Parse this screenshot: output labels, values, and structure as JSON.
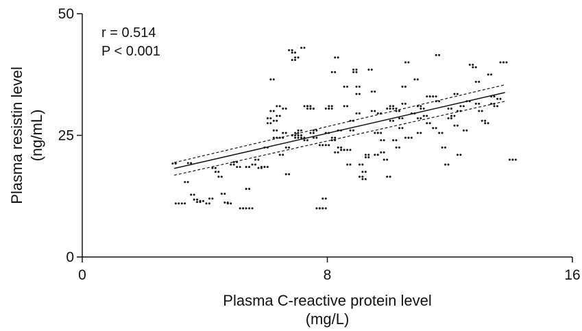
{
  "chart_data": {
    "type": "scatter",
    "title": "",
    "xlabel_lines": [
      "Plasma C-reactive protein level",
      "(mg/L)"
    ],
    "ylabel_lines": [
      "Plasma resistin level",
      "(ng/mL)"
    ],
    "xlim": [
      0,
      16
    ],
    "ylim": [
      0,
      50
    ],
    "xticks": [
      "0",
      "8",
      "16"
    ],
    "yticks": [
      "0",
      "25",
      "50"
    ],
    "grid": false,
    "legend": "none",
    "annotations": [
      "r = 0.514",
      "P < 0.001"
    ],
    "regression": {
      "x": [
        3,
        13.8
      ],
      "y": [
        18.2,
        33.8
      ]
    },
    "ci_upper": {
      "x": [
        3,
        13.8
      ],
      "y": [
        19.4,
        35.4
      ]
    },
    "ci_lower": {
      "x": [
        3,
        13.8
      ],
      "y": [
        16.8,
        32.0
      ]
    },
    "points": [
      [
        3.0,
        19.2
      ],
      [
        3.1,
        11.0
      ],
      [
        3.3,
        11.0
      ],
      [
        3.4,
        15.4
      ],
      [
        3.5,
        19.3
      ],
      [
        3.6,
        12.8
      ],
      [
        3.7,
        11.8
      ],
      [
        3.8,
        11.3
      ],
      [
        3.9,
        11.5
      ],
      [
        4.1,
        11.0
      ],
      [
        4.2,
        12.0
      ],
      [
        4.3,
        18.3
      ],
      [
        4.4,
        17.5
      ],
      [
        4.5,
        16.5
      ],
      [
        4.6,
        13.0
      ],
      [
        4.7,
        11.2
      ],
      [
        4.8,
        11.0
      ],
      [
        4.9,
        19.0
      ],
      [
        5.0,
        19.5
      ],
      [
        5.1,
        18.5
      ],
      [
        5.2,
        10.0
      ],
      [
        5.3,
        10.0
      ],
      [
        5.4,
        18.5
      ],
      [
        5.5,
        10.0
      ],
      [
        5.4,
        14.0
      ],
      [
        5.6,
        19.0
      ],
      [
        5.7,
        20.0
      ],
      [
        5.8,
        18.3
      ],
      [
        5.9,
        18.5
      ],
      [
        6.0,
        18.5
      ],
      [
        6.1,
        28.5
      ],
      [
        6.1,
        27.5
      ],
      [
        6.2,
        36.5
      ],
      [
        6.2,
        30.0
      ],
      [
        6.3,
        28.0
      ],
      [
        6.3,
        26.0
      ],
      [
        6.4,
        31.0
      ],
      [
        6.4,
        29.0
      ],
      [
        6.5,
        21.0
      ],
      [
        6.5,
        24.5
      ],
      [
        6.6,
        25.5
      ],
      [
        6.6,
        30.5
      ],
      [
        6.7,
        17.0
      ],
      [
        6.8,
        42.5
      ],
      [
        6.9,
        42.0
      ],
      [
        6.9,
        40.5
      ],
      [
        7.0,
        41.0
      ],
      [
        7.0,
        25.5
      ],
      [
        7.1,
        26.0
      ],
      [
        7.1,
        25.0
      ],
      [
        7.2,
        43.0
      ],
      [
        7.2,
        24.5
      ],
      [
        7.3,
        24.0
      ],
      [
        7.3,
        31.0
      ],
      [
        7.4,
        31.0
      ],
      [
        7.4,
        30.5
      ],
      [
        7.5,
        30.5
      ],
      [
        7.5,
        25.5
      ],
      [
        7.6,
        24.5
      ],
      [
        7.6,
        26.0
      ],
      [
        7.7,
        10.0
      ],
      [
        7.8,
        10.0
      ],
      [
        7.9,
        12.0
      ],
      [
        7.9,
        10.0
      ],
      [
        8.0,
        25.5
      ],
      [
        8.0,
        23.0
      ],
      [
        8.1,
        31.0
      ],
      [
        8.1,
        30.5
      ],
      [
        8.2,
        38.0
      ],
      [
        8.2,
        24.0
      ],
      [
        8.3,
        41.0
      ],
      [
        8.3,
        21.5
      ],
      [
        8.4,
        22.5
      ],
      [
        8.5,
        22.0
      ],
      [
        8.5,
        22.0
      ],
      [
        8.6,
        35.0
      ],
      [
        8.6,
        31.0
      ],
      [
        8.7,
        19.0
      ],
      [
        8.7,
        22.0
      ],
      [
        8.8,
        28.0
      ],
      [
        8.8,
        26.0
      ],
      [
        8.9,
        38.5
      ],
      [
        8.9,
        38.0
      ],
      [
        9.0,
        33.5
      ],
      [
        9.0,
        35.0
      ],
      [
        9.1,
        19.0
      ],
      [
        9.1,
        16.5
      ],
      [
        9.2,
        17.5
      ],
      [
        9.2,
        16.0
      ],
      [
        9.3,
        20.5
      ],
      [
        9.3,
        21.0
      ],
      [
        9.4,
        38.5
      ],
      [
        9.5,
        34.0
      ],
      [
        9.6,
        25.5
      ],
      [
        9.6,
        21.0
      ],
      [
        9.7,
        29.5
      ],
      [
        9.8,
        24.0
      ],
      [
        9.8,
        21.5
      ],
      [
        9.9,
        20.0
      ],
      [
        10.0,
        16.5
      ],
      [
        10.1,
        31.0
      ],
      [
        10.1,
        28.0
      ],
      [
        10.2,
        30.5
      ],
      [
        10.3,
        30.0
      ],
      [
        10.3,
        22.5
      ],
      [
        10.4,
        26.5
      ],
      [
        10.5,
        35.0
      ],
      [
        10.5,
        31.5
      ],
      [
        10.6,
        40.0
      ],
      [
        10.6,
        24.5
      ],
      [
        10.7,
        24.5
      ],
      [
        10.8,
        29.5
      ],
      [
        10.9,
        36.5
      ],
      [
        11.0,
        28.5
      ],
      [
        11.0,
        25.5
      ],
      [
        11.1,
        30.5
      ],
      [
        11.2,
        29.0
      ],
      [
        11.3,
        27.5
      ],
      [
        11.4,
        33.0
      ],
      [
        11.5,
        33.0
      ],
      [
        11.6,
        41.5
      ],
      [
        11.6,
        32.0
      ],
      [
        11.7,
        25.5
      ],
      [
        11.8,
        22.5
      ],
      [
        11.9,
        19.0
      ],
      [
        12.0,
        28.5
      ],
      [
        12.1,
        29.0
      ],
      [
        12.2,
        27.0
      ],
      [
        12.3,
        30.0
      ],
      [
        12.3,
        21.0
      ],
      [
        12.4,
        31.0
      ],
      [
        12.5,
        26.0
      ],
      [
        12.6,
        32.0
      ],
      [
        12.7,
        39.5
      ],
      [
        12.8,
        39.0
      ],
      [
        12.9,
        36.0
      ],
      [
        13.0,
        30.0
      ],
      [
        13.1,
        28.0
      ],
      [
        13.2,
        27.5
      ],
      [
        13.3,
        37.5
      ],
      [
        13.4,
        31.5
      ],
      [
        13.5,
        31.0
      ],
      [
        13.6,
        32.5
      ],
      [
        13.7,
        40.0
      ],
      [
        13.8,
        40.0
      ],
      [
        14.0,
        20.0
      ],
      [
        14.1,
        20.0
      ],
      [
        6.0,
        22.5
      ],
      [
        6.7,
        22.5
      ],
      [
        7.0,
        24.5
      ],
      [
        7.5,
        30.5
      ],
      [
        8.0,
        30.5
      ],
      [
        8.4,
        26.0
      ],
      [
        9.0,
        29.5
      ],
      [
        9.5,
        30.0
      ],
      [
        10.0,
        30.5
      ],
      [
        10.2,
        24.0
      ],
      [
        11.0,
        31.0
      ],
      [
        11.5,
        26.5
      ],
      [
        12.2,
        33.5
      ],
      [
        6.3,
        24.5
      ],
      [
        6.9,
        25.0
      ],
      [
        7.8,
        23.0
      ],
      [
        8.2,
        24.5
      ],
      [
        9.7,
        25.5
      ],
      [
        10.4,
        28.5
      ],
      [
        11.3,
        33.0
      ],
      [
        12.0,
        30.5
      ],
      [
        12.9,
        31.5
      ],
      [
        13.4,
        33.0
      ]
    ]
  }
}
